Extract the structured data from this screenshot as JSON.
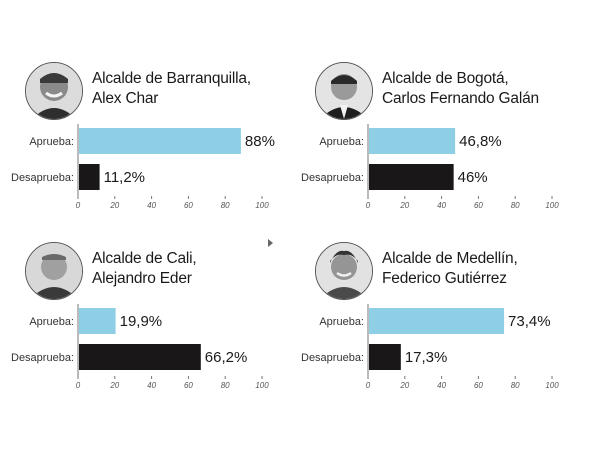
{
  "chart_data": [
    {
      "type": "bar",
      "orientation": "horizontal",
      "title": [
        "Alcalde de Barranquilla,",
        "Alex Char"
      ],
      "categories": [
        "Aprueba:",
        "Desaprueba:"
      ],
      "values": [
        88,
        11.2
      ],
      "value_labels": [
        "88%",
        "11,2%"
      ],
      "colors": [
        "#8fcfe6",
        "#1a1718"
      ],
      "xlim": [
        0,
        100
      ],
      "xticks": [
        "0",
        "20",
        "40",
        "60",
        "80",
        "100"
      ]
    },
    {
      "type": "bar",
      "orientation": "horizontal",
      "title": [
        "Alcalde de Bogotá,",
        "Carlos Fernando Galán"
      ],
      "categories": [
        "Aprueba:",
        "Desaprueba:"
      ],
      "values": [
        46.8,
        46
      ],
      "value_labels": [
        "46,8%",
        "46%"
      ],
      "colors": [
        "#8fcfe6",
        "#1a1718"
      ],
      "xlim": [
        0,
        100
      ],
      "xticks": [
        "0",
        "20",
        "40",
        "60",
        "80",
        "100"
      ]
    },
    {
      "type": "bar",
      "orientation": "horizontal",
      "title": [
        "Alcalde de Cali,",
        "Alejandro Eder"
      ],
      "categories": [
        "Aprueba:",
        "Desaprueba:"
      ],
      "values": [
        19.9,
        66.2
      ],
      "value_labels": [
        "19,9%",
        "66,2%"
      ],
      "colors": [
        "#8fcfe6",
        "#1a1718"
      ],
      "xlim": [
        0,
        100
      ],
      "xticks": [
        "0",
        "20",
        "40",
        "60",
        "80",
        "100"
      ]
    },
    {
      "type": "bar",
      "orientation": "horizontal",
      "title": [
        "Alcalde de Medellín,",
        "Federico Gutiérrez"
      ],
      "categories": [
        "Aprueba:",
        "Desaprueba:"
      ],
      "values": [
        73.4,
        17.3
      ],
      "value_labels": [
        "73,4%",
        "17,3%"
      ],
      "colors": [
        "#8fcfe6",
        "#1a1718"
      ],
      "xlim": [
        0,
        100
      ],
      "xticks": [
        "0",
        "20",
        "40",
        "60",
        "80",
        "100"
      ]
    }
  ]
}
